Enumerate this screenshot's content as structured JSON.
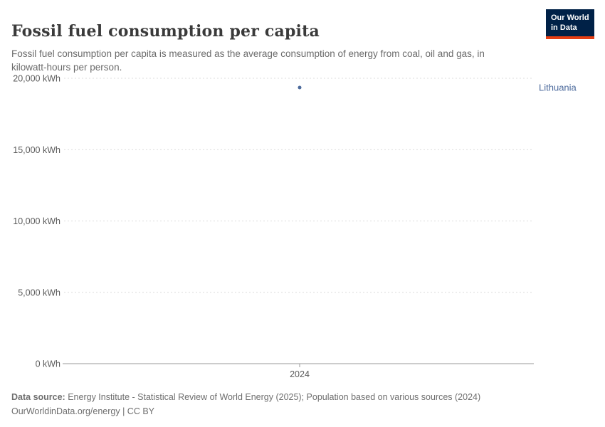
{
  "header": {
    "title": "Fossil fuel consumption per capita",
    "subtitle": "Fossil fuel consumption per capita is measured as the average consumption of energy from coal, oil and gas, in kilowatt-hours per person.",
    "logo": {
      "line1": "Our World",
      "line2": "in Data"
    }
  },
  "chart_data": {
    "type": "scatter",
    "title": "Fossil fuel consumption per capita",
    "xlabel": "",
    "ylabel": "kWh",
    "ylim": [
      0,
      20000
    ],
    "grid": "dashed-horizontal",
    "x_ticks": [
      2024
    ],
    "x_tick_labels": [
      "2024"
    ],
    "y_ticks": [
      0,
      5000,
      10000,
      15000,
      20000
    ],
    "y_tick_labels": [
      "0 kWh",
      "5,000 kWh",
      "10,000 kWh",
      "15,000 kWh",
      "20,000 kWh"
    ],
    "series": [
      {
        "name": "Lithuania",
        "color": "#4c6a9c",
        "points": [
          {
            "x": 2024,
            "y": 19350
          }
        ]
      }
    ],
    "entity_label": "Lithuania"
  },
  "footer": {
    "source_label": "Data source:",
    "source_text": " Energy Institute - Statistical Review of World Energy (2025); Population based on various sources (2024)",
    "license_text": "OurWorldinData.org/energy | CC BY"
  },
  "colors": {
    "gridline": "#dcdcdc",
    "axis_line": "#9a9a9a",
    "tick_label": "#5b5b5b",
    "logo_bg": "#002147",
    "logo_accent": "#e63e13"
  }
}
